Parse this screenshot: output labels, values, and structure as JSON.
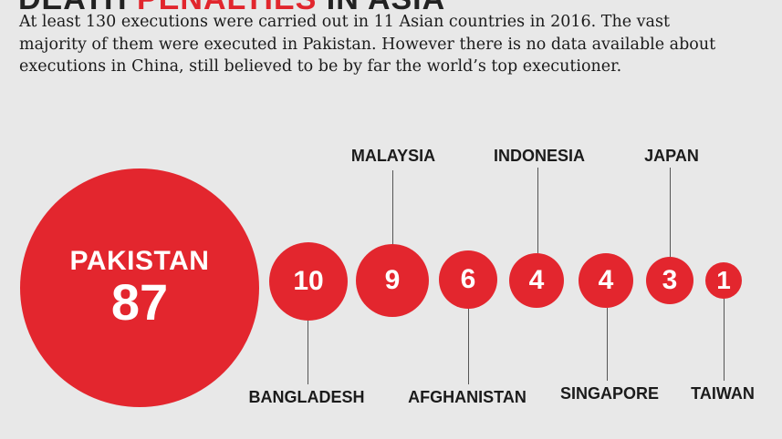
{
  "title": {
    "part1": "DEATH ",
    "part2": "PENALTIES",
    "part3": " IN ASIA"
  },
  "intro": {
    "line1": "At least 130 executions were carried out in 11 Asian countries in 2016. The vast",
    "line2": "majority of them were executed in Pakistan. However there is no data available about",
    "line3": "executions in China, still believed to be by far the world’s top executioner."
  },
  "colors": {
    "accent": "#e3262e",
    "background": "#e8e8e8"
  },
  "countries": [
    {
      "name": "PAKISTAN",
      "value": "87"
    },
    {
      "name": "BANGLADESH",
      "value": "10"
    },
    {
      "name": "MALAYSIA",
      "value": "9"
    },
    {
      "name": "AFGHANISTAN",
      "value": "6"
    },
    {
      "name": "INDONESIA",
      "value": "4"
    },
    {
      "name": "SINGAPORE",
      "value": "4"
    },
    {
      "name": "JAPAN",
      "value": "3"
    },
    {
      "name": "TAIWAN",
      "value": "1"
    }
  ]
}
